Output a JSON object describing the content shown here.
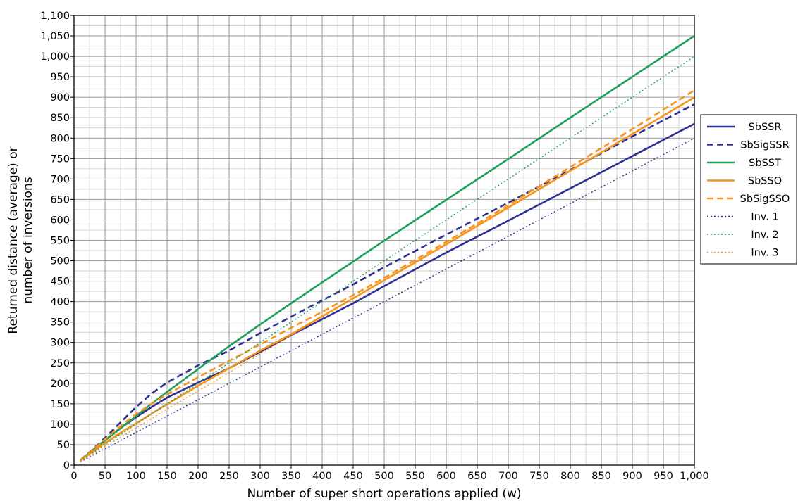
{
  "chart_data": {
    "type": "line",
    "xlabel": "Number of super short operations applied (w)",
    "ylabel": [
      "Returned distance (average) or",
      "number of inversions"
    ],
    "xlim": [
      0,
      1000
    ],
    "ylim": [
      0,
      1100
    ],
    "x_ticks": [
      0,
      50,
      100,
      150,
      200,
      250,
      300,
      350,
      400,
      450,
      500,
      550,
      600,
      650,
      700,
      750,
      800,
      850,
      900,
      950,
      1000
    ],
    "x_tick_labels": [
      "0",
      "50",
      "100",
      "150",
      "200",
      "250",
      "300",
      "350",
      "400",
      "450",
      "500",
      "550",
      "600",
      "650",
      "700",
      "750",
      "800",
      "850",
      "900",
      "950",
      "1,000"
    ],
    "y_ticks": [
      0,
      50,
      100,
      150,
      200,
      250,
      300,
      350,
      400,
      450,
      500,
      550,
      600,
      650,
      700,
      750,
      800,
      850,
      900,
      950,
      1000,
      1050,
      1100
    ],
    "y_tick_labels": [
      "0",
      "50",
      "100",
      "150",
      "200",
      "250",
      "300",
      "350",
      "400",
      "450",
      "500",
      "550",
      "600",
      "650",
      "700",
      "750",
      "800",
      "850",
      "900",
      "950",
      "1,000",
      "1,050",
      "1,100"
    ],
    "grid": true,
    "minor_grid": true,
    "legend_position": "right",
    "series": [
      {
        "name": "SbSSR",
        "color": "#2e3192",
        "style": "solid",
        "x": [
          10,
          20,
          30,
          40,
          50,
          60,
          70,
          80,
          90,
          100,
          125,
          150,
          200,
          250,
          300,
          350,
          400,
          450,
          500,
          600,
          700,
          800,
          900,
          1000
        ],
        "y": [
          12,
          24,
          36,
          49,
          61,
          73,
          85,
          96,
          106,
          117,
          142,
          165,
          202,
          237,
          277,
          318,
          357,
          396,
          438,
          520,
          598,
          677,
          756,
          835
        ]
      },
      {
        "name": "SbSigSSR",
        "color": "#2e3192",
        "style": "dashed",
        "x": [
          10,
          20,
          30,
          40,
          50,
          60,
          70,
          80,
          90,
          100,
          125,
          150,
          200,
          250,
          300,
          350,
          400,
          450,
          500,
          600,
          700,
          800,
          900,
          1000
        ],
        "y": [
          12,
          25,
          38,
          52,
          67,
          82,
          97,
          112,
          127,
          142,
          175,
          202,
          244,
          280,
          323,
          363,
          403,
          442,
          484,
          564,
          642,
          722,
          804,
          883
        ]
      },
      {
        "name": "SbSST",
        "color": "#1e9e5a",
        "style": "solid",
        "x": [
          10,
          20,
          30,
          40,
          50,
          60,
          70,
          80,
          90,
          100,
          125,
          150,
          200,
          250,
          300,
          350,
          400,
          450,
          500,
          600,
          700,
          800,
          900,
          1000
        ],
        "y": [
          12,
          24,
          36,
          48,
          60,
          72,
          84,
          96,
          108,
          120,
          150,
          179,
          235,
          291,
          344,
          396,
          447,
          498,
          549,
          649,
          749,
          850,
          950,
          1050
        ]
      },
      {
        "name": "SbSSO",
        "color": "#f7941d",
        "style": "solid",
        "x": [
          10,
          20,
          30,
          40,
          50,
          60,
          70,
          80,
          90,
          100,
          125,
          150,
          200,
          250,
          300,
          350,
          400,
          450,
          500,
          600,
          700,
          800,
          900,
          1000
        ],
        "y": [
          11,
          22,
          33,
          44,
          54,
          64,
          74,
          84,
          93,
          102,
          126,
          149,
          194,
          237,
          280,
          320,
          364,
          408,
          452,
          540,
          630,
          720,
          810,
          900
        ]
      },
      {
        "name": "SbSigSSO",
        "color": "#f7941d",
        "style": "dashed",
        "x": [
          10,
          20,
          30,
          40,
          50,
          60,
          70,
          80,
          90,
          100,
          125,
          150,
          200,
          250,
          300,
          350,
          400,
          450,
          500,
          600,
          700,
          800,
          900,
          1000
        ],
        "y": [
          12,
          24,
          37,
          50,
          63,
          76,
          89,
          101,
          113,
          125,
          150,
          173,
          215,
          255,
          295,
          336,
          375,
          416,
          458,
          546,
          636,
          729,
          822,
          917
        ]
      },
      {
        "name": "Inv. 1",
        "color": "#2e3192",
        "style": "dotted",
        "x": [
          10,
          1000
        ],
        "y": [
          8,
          800
        ]
      },
      {
        "name": "Inv. 2",
        "color": "#1e9e5a",
        "style": "dotted",
        "x": [
          10,
          1000
        ],
        "y": [
          10,
          1000
        ]
      },
      {
        "name": "Inv. 3",
        "color": "#f7941d",
        "style": "dotted",
        "x": [
          10,
          50,
          100,
          150,
          200,
          300,
          400,
          500,
          600,
          700,
          800,
          900,
          1000
        ],
        "y": [
          9,
          45,
          91,
          137,
          181,
          272,
          362,
          452,
          542,
          632,
          721,
          811,
          900
        ]
      }
    ]
  }
}
